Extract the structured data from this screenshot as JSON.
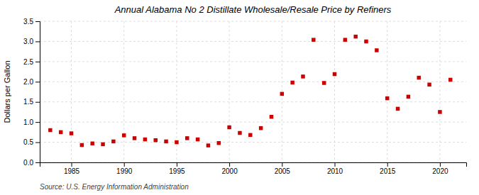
{
  "chart_data": {
    "type": "scatter",
    "title": "Annual Alabama No 2 Distillate Wholesale/Resale Price by Refiners",
    "ylabel": "Dollars per Gallon",
    "source": "Source: U.S. Energy Information Administration",
    "x": [
      1983,
      1984,
      1985,
      1986,
      1987,
      1988,
      1989,
      1990,
      1991,
      1992,
      1993,
      1994,
      1995,
      1996,
      1997,
      1998,
      1999,
      2000,
      2001,
      2002,
      2003,
      2004,
      2005,
      2006,
      2007,
      2008,
      2009,
      2010,
      2011,
      2012,
      2013,
      2014,
      2015,
      2016,
      2017,
      2018,
      2019,
      2020,
      2021
    ],
    "values": [
      0.8,
      0.75,
      0.72,
      0.43,
      0.47,
      0.45,
      0.52,
      0.67,
      0.6,
      0.57,
      0.55,
      0.52,
      0.5,
      0.6,
      0.57,
      0.42,
      0.48,
      0.87,
      0.73,
      0.68,
      0.85,
      1.13,
      1.7,
      1.98,
      2.13,
      3.04,
      1.97,
      2.19,
      3.04,
      3.12,
      3.0,
      2.78,
      1.59,
      1.33,
      1.63,
      2.1,
      1.93,
      1.25,
      2.05
    ],
    "color": "#cc0000",
    "marker": "square",
    "xlim": [
      1982,
      2022.5
    ],
    "ylim": [
      0.0,
      3.5
    ],
    "xticks": [
      1985,
      1990,
      1995,
      2000,
      2005,
      2010,
      2015,
      2020
    ],
    "yticks": [
      {
        "value": 0.0,
        "label": "0.0"
      },
      0.5,
      {
        "value": 1.0,
        "label": "1.0"
      },
      1.5,
      {
        "value": 2.0,
        "label": "2.0"
      },
      2.5,
      {
        "value": 3.0,
        "label": "3.0"
      },
      3.5
    ],
    "grid": true
  }
}
